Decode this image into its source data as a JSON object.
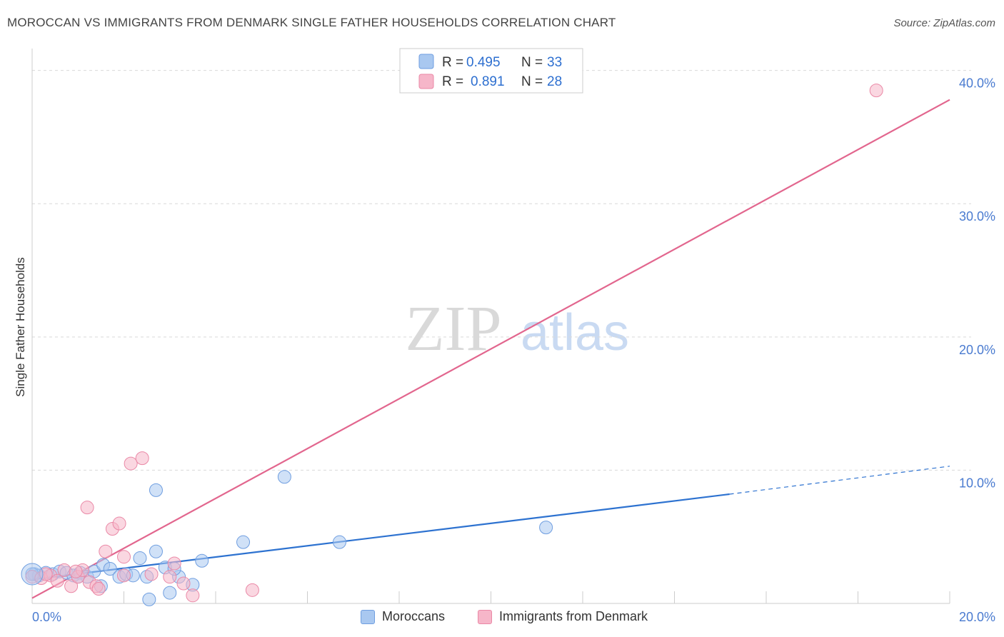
{
  "header": {
    "title": "MOROCCAN VS IMMIGRANTS FROM DENMARK SINGLE FATHER HOUSEHOLDS CORRELATION CHART",
    "source": "Source: ZipAtlas.com"
  },
  "watermark": {
    "zip": "ZIP",
    "atlas": "atlas"
  },
  "colors": {
    "blue_fill": "#a9c8f0",
    "blue_stroke": "#6f9ee0",
    "blue_line": "#2d72d0",
    "pink_fill": "#f6b6c9",
    "pink_stroke": "#ea88a6",
    "pink_line": "#e2668e",
    "grid": "#d9d9d9",
    "tick_text": "#4a7bd0"
  },
  "chart_data": {
    "type": "scatter",
    "title": "MOROCCAN VS IMMIGRANTS FROM DENMARK SINGLE FATHER HOUSEHOLDS CORRELATION CHART",
    "xlabel": "",
    "ylabel": "Single Father Households",
    "xlim": [
      0,
      20
    ],
    "ylim": [
      0,
      41
    ],
    "x_tick_labels": [
      {
        "value": 0,
        "label": "0.0%"
      },
      {
        "value": 20,
        "label": "20.0%"
      }
    ],
    "y_tick_labels": [
      {
        "value": 10,
        "label": "10.0%"
      },
      {
        "value": 20,
        "label": "20.0%"
      },
      {
        "value": 30,
        "label": "30.0%"
      },
      {
        "value": 40,
        "label": "40.0%"
      }
    ],
    "y_grid": [
      10,
      20,
      30,
      40
    ],
    "x_minor_ticks": [
      2,
      4,
      6,
      8,
      10,
      12,
      14,
      16,
      18,
      20
    ],
    "legend": [
      {
        "name": "Moroccans",
        "r_label": "R =",
        "r": "0.495",
        "n_label": "N =",
        "n": "33"
      },
      {
        "name": "Immigrants from Denmark",
        "r_label": "R =",
        "r": "0.891",
        "n_label": "N =",
        "n": "28"
      }
    ],
    "series": [
      {
        "name": "Moroccans",
        "color": "blue",
        "points": [
          [
            0.05,
            2.2
          ],
          [
            0.15,
            2.1
          ],
          [
            0.3,
            2.3
          ],
          [
            0.45,
            2.2
          ],
          [
            0.6,
            2.4
          ],
          [
            0.75,
            2.3
          ],
          [
            0.9,
            2.1
          ],
          [
            1.05,
            2.3
          ],
          [
            1.2,
            2.0
          ],
          [
            1.35,
            2.4
          ],
          [
            1.5,
            1.3
          ],
          [
            1.55,
            2.9
          ],
          [
            1.7,
            2.6
          ],
          [
            1.9,
            2.0
          ],
          [
            2.05,
            2.2
          ],
          [
            2.2,
            2.1
          ],
          [
            2.35,
            3.4
          ],
          [
            2.5,
            2.0
          ],
          [
            2.7,
            3.9
          ],
          [
            2.9,
            2.7
          ],
          [
            3.0,
            0.8
          ],
          [
            3.2,
            2.0
          ],
          [
            3.5,
            1.4
          ],
          [
            3.7,
            3.2
          ],
          [
            4.6,
            4.6
          ],
          [
            5.5,
            9.5
          ],
          [
            6.7,
            4.6
          ],
          [
            11.2,
            5.7
          ],
          [
            2.7,
            8.5
          ],
          [
            3.1,
            2.6
          ],
          [
            0.0,
            2.2
          ],
          [
            1.0,
            2.0
          ],
          [
            2.55,
            0.3
          ]
        ],
        "trend": {
          "x0": 0,
          "y0": 1.8,
          "x1": 15.2,
          "y1": 8.2,
          "x_dash_end": 20,
          "y_dash_end": 10.3
        }
      },
      {
        "name": "Immigrants from Denmark",
        "color": "pink",
        "points": [
          [
            0.0,
            2.0
          ],
          [
            0.2,
            1.9
          ],
          [
            0.4,
            2.1
          ],
          [
            0.55,
            1.7
          ],
          [
            0.7,
            2.5
          ],
          [
            0.85,
            1.3
          ],
          [
            1.0,
            2.0
          ],
          [
            1.1,
            2.5
          ],
          [
            1.25,
            1.6
          ],
          [
            1.4,
            1.3
          ],
          [
            1.2,
            7.2
          ],
          [
            1.6,
            3.9
          ],
          [
            1.75,
            5.6
          ],
          [
            1.9,
            6.0
          ],
          [
            2.0,
            3.5
          ],
          [
            2.15,
            10.5
          ],
          [
            2.4,
            10.9
          ],
          [
            2.6,
            2.2
          ],
          [
            3.1,
            3.0
          ],
          [
            3.3,
            1.5
          ],
          [
            3.5,
            0.6
          ],
          [
            4.8,
            1.0
          ],
          [
            18.4,
            38.5
          ],
          [
            0.3,
            2.2
          ],
          [
            0.95,
            2.4
          ],
          [
            1.45,
            1.1
          ],
          [
            2.0,
            2.1
          ],
          [
            3.0,
            2.0
          ]
        ],
        "trend": {
          "x0": 0,
          "y0": 0.4,
          "x1": 20,
          "y1": 37.8
        }
      }
    ]
  }
}
